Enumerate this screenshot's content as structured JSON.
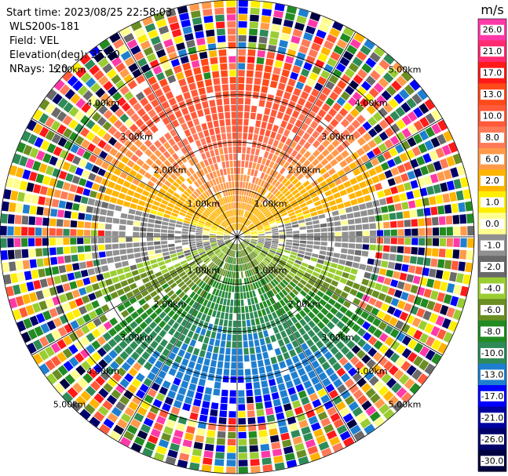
{
  "header": {
    "start_time": "Start time: 2023/08/25 22:58:03",
    "instrument": "WLS200s-181",
    "field": "Field: VEL",
    "elevation": "Elevation(deg): 35.30",
    "nrays": "NRays: 120"
  },
  "range_rings": {
    "labels": [
      "1.00km",
      "2.00km",
      "3.00km",
      "4.00km",
      "5.00km"
    ],
    "max_range_km": 5.0
  },
  "scan": {
    "nrays": 120,
    "gates_per_ray": 34
  },
  "colorbar": {
    "unit": "m/s",
    "ticks": [
      "26.0",
      "21.0",
      "17.0",
      "13.0",
      "10.0",
      "8.0",
      "6.0",
      "2.0",
      "1.0",
      "0.0",
      "-1.0",
      "-2.0",
      "-4.0",
      "-6.0",
      "-8.0",
      "-10.0",
      "-13.0",
      "-17.0",
      "-21.0",
      "-26.0",
      "-30.0"
    ],
    "bins": [
      {
        "min": 26,
        "max": 30,
        "color": "#ff3aa8"
      },
      {
        "min": 21,
        "max": 26,
        "color": "#ff2a70"
      },
      {
        "min": 17,
        "max": 21,
        "color": "#ff1a1a"
      },
      {
        "min": 13,
        "max": 17,
        "color": "#ff4a1a"
      },
      {
        "min": 10,
        "max": 13,
        "color": "#ff5a3a"
      },
      {
        "min": 8,
        "max": 10,
        "color": "#ff7a58"
      },
      {
        "min": 6,
        "max": 8,
        "color": "#ff9a4a"
      },
      {
        "min": 2,
        "max": 6,
        "color": "#ffb400"
      },
      {
        "min": 1,
        "max": 2,
        "color": "#ffee00"
      },
      {
        "min": 0,
        "max": 1,
        "color": "#ffff90"
      },
      {
        "min": -1,
        "max": 0,
        "color": "#909090"
      },
      {
        "min": -2,
        "max": -1,
        "color": "#6a6a6a"
      },
      {
        "min": -4,
        "max": -2,
        "color": "#9acd32"
      },
      {
        "min": -6,
        "max": -4,
        "color": "#6b8e23"
      },
      {
        "min": -8,
        "max": -6,
        "color": "#228b22"
      },
      {
        "min": -10,
        "max": -8,
        "color": "#2e8b57"
      },
      {
        "min": -13,
        "max": -10,
        "color": "#1e7fd0"
      },
      {
        "min": -17,
        "max": -13,
        "color": "#0000ff"
      },
      {
        "min": -21,
        "max": -17,
        "color": "#0000a0"
      },
      {
        "min": -26,
        "max": -21,
        "color": "#00006a"
      },
      {
        "min": -30,
        "max": -26,
        "color": "#000040"
      }
    ],
    "gradient_top": "#ff3aa8",
    "gradient_bottom": "#000040"
  },
  "noise_palette": [
    "#ff1a1a",
    "#ff3aa8",
    "#ffee00",
    "#ffb400",
    "#0000ff",
    "#00006a",
    "#ff7a58",
    "#9acd32",
    "#228b22",
    "#6a6a6a",
    "#ff5a3a",
    "#ffff90",
    "#1e7fd0",
    "#6b8e23",
    "#000040",
    "#ff9a4a",
    "#2e8b57"
  ]
}
